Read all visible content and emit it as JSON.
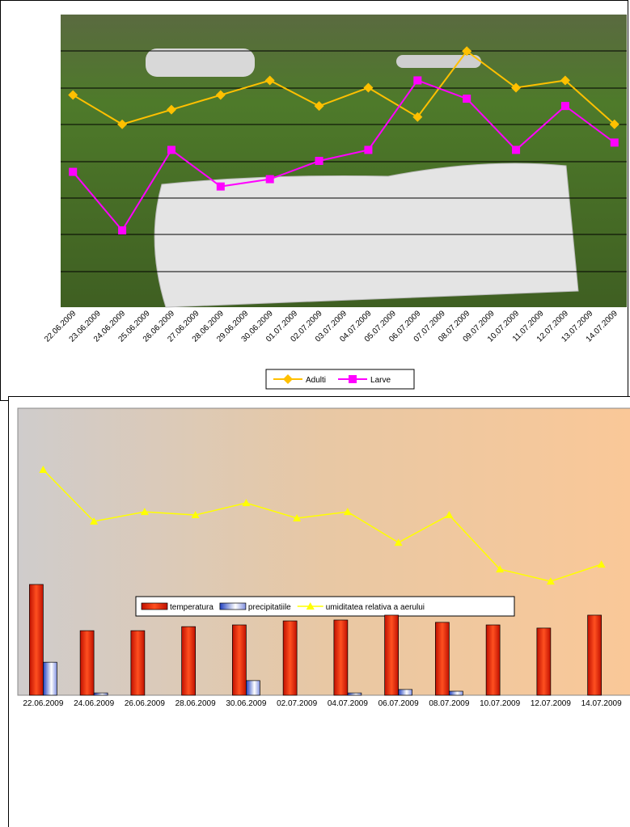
{
  "chart_data": [
    {
      "type": "line",
      "categories": [
        "22.06.2009",
        "23.06.2009",
        "24.06.2009",
        "25.06.2009",
        "26.06.2009",
        "27.06.2009",
        "28.06.2009",
        "29.06.2009",
        "30.06.2009",
        "01.07.2009",
        "02.07.2009",
        "03.07.2009",
        "04.07.2009",
        "05.07.2009",
        "06.07.2009",
        "07.07.2009",
        "08.07.2009",
        "09.07.2009",
        "10.07.2009",
        "11.07.2009",
        "12.07.2009",
        "13.07.2009",
        "14.07.2009"
      ],
      "series": [
        {
          "name": "Adulti",
          "color": "#ffc000",
          "marker": "diamond",
          "values": [
            5.8,
            null,
            5.0,
            null,
            5.4,
            null,
            5.8,
            null,
            6.2,
            null,
            5.5,
            null,
            6.0,
            null,
            5.2,
            null,
            7.0,
            null,
            6.0,
            null,
            6.2,
            null,
            5.0
          ]
        },
        {
          "name": "Larve",
          "color": "#ff00ff",
          "marker": "square",
          "values": [
            3.7,
            null,
            2.1,
            null,
            4.3,
            null,
            3.3,
            null,
            3.5,
            null,
            4.0,
            null,
            4.3,
            null,
            6.2,
            null,
            5.7,
            null,
            4.3,
            null,
            5.5,
            null,
            4.5
          ]
        }
      ],
      "ylim": [
        0,
        8
      ],
      "legend": "bottom"
    },
    {
      "type": "bar_line",
      "categories": [
        "22.06.2009",
        "24.06.2009",
        "26.06.2009",
        "28.06.2009",
        "30.06.2009",
        "02.07.2009",
        "04.07.2009",
        "06.07.2009",
        "08.07.2009",
        "10.07.2009",
        "12.07.2009",
        "14.07.2009"
      ],
      "series": [
        {
          "name": "temperatura",
          "color": "#e83010",
          "kind": "bar",
          "values": [
            38.6,
            22.5,
            22.5,
            23.9,
            24.5,
            25.9,
            26.2,
            27.9,
            25.4,
            24.5,
            23.4,
            27.9
          ]
        },
        {
          "name": "precipitatiile",
          "color": "#6080e0",
          "kind": "bar",
          "values": [
            11.5,
            0.8,
            0,
            0,
            5.1,
            0,
            0.8,
            2.0,
            1.4,
            0,
            0,
            0
          ]
        },
        {
          "name": "umiditatea relativa a aerului",
          "color": "#ffff00",
          "kind": "line",
          "values": [
            78.6,
            60.6,
            63.9,
            62.8,
            67.0,
            61.7,
            63.9,
            53.2,
            62.8,
            43.9,
            39.7,
            45.6
          ]
        }
      ],
      "ylim": [
        0,
        100
      ],
      "legend": "bottom"
    }
  ]
}
